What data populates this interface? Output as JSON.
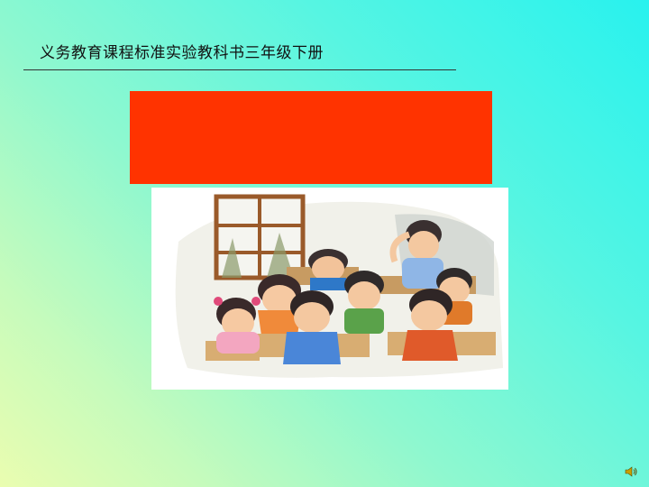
{
  "slide": {
    "title": "义务教育课程标准实验教科书三年级下册"
  },
  "illustration": {
    "icon": "classroom-students-thinking-illustration"
  },
  "audio": {
    "icon": "speaker-icon"
  },
  "colors": {
    "banner": "#ff3300",
    "background_top_right": "#28f2ee",
    "background_bottom_left": "#eafdb0"
  }
}
